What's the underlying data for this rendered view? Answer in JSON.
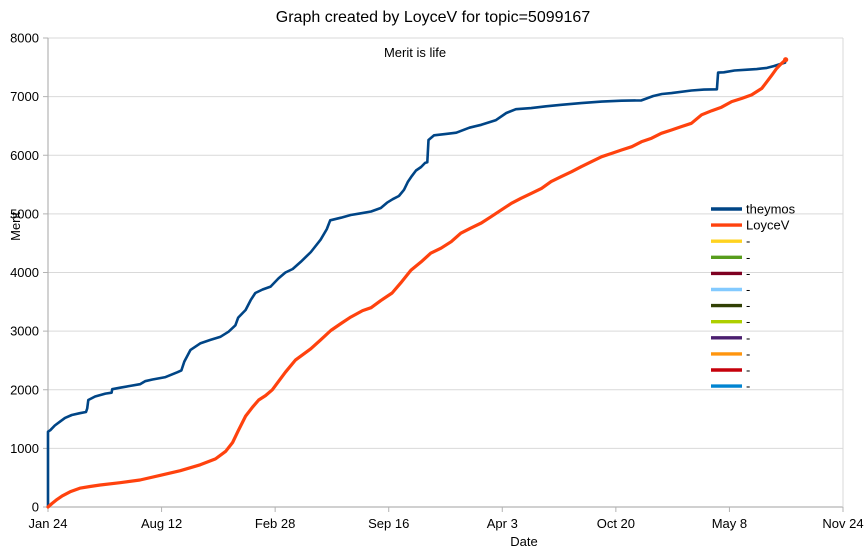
{
  "chart_data": {
    "type": "line",
    "title": "Graph created by LoyceV for topic=5099167",
    "subtitle": "Merit is life",
    "xlabel": "Date",
    "ylabel": "Merit",
    "xlim": [
      0,
      1400
    ],
    "ylim": [
      0,
      8000
    ],
    "y_tick_step": 1000,
    "y_tick_labels": [
      "0",
      "1000",
      "2000",
      "3000",
      "4000",
      "5000",
      "6000",
      "7000",
      "8000"
    ],
    "x_ticks": [
      {
        "pos": 0,
        "label": "Jan 24"
      },
      {
        "pos": 200,
        "label": "Aug 12"
      },
      {
        "pos": 400,
        "label": "Feb 28"
      },
      {
        "pos": 600,
        "label": "Sep 16"
      },
      {
        "pos": 800,
        "label": "Apr 3"
      },
      {
        "pos": 1000,
        "label": "Oct 20"
      },
      {
        "pos": 1200,
        "label": "May 8"
      },
      {
        "pos": 1400,
        "label": "Nov 24"
      }
    ],
    "grid": "horizontal",
    "legend_position": "right-inside",
    "series": [
      {
        "name": "theymos",
        "color": "#004586",
        "width": 2.6,
        "points": [
          [
            0,
            0
          ],
          [
            0,
            1285
          ],
          [
            4,
            1310
          ],
          [
            12,
            1390
          ],
          [
            21,
            1455
          ],
          [
            30,
            1520
          ],
          [
            42,
            1570
          ],
          [
            56,
            1600
          ],
          [
            67,
            1620
          ],
          [
            69,
            1680
          ],
          [
            71,
            1825
          ],
          [
            83,
            1885
          ],
          [
            101,
            1935
          ],
          [
            112,
            1950
          ],
          [
            113,
            2010
          ],
          [
            127,
            2035
          ],
          [
            145,
            2065
          ],
          [
            162,
            2095
          ],
          [
            171,
            2145
          ],
          [
            184,
            2175
          ],
          [
            207,
            2215
          ],
          [
            228,
            2300
          ],
          [
            235,
            2330
          ],
          [
            240,
            2480
          ],
          [
            251,
            2680
          ],
          [
            268,
            2790
          ],
          [
            286,
            2850
          ],
          [
            304,
            2905
          ],
          [
            318,
            2990
          ],
          [
            330,
            3100
          ],
          [
            335,
            3230
          ],
          [
            348,
            3360
          ],
          [
            357,
            3530
          ],
          [
            365,
            3650
          ],
          [
            378,
            3710
          ],
          [
            392,
            3760
          ],
          [
            406,
            3900
          ],
          [
            418,
            4000
          ],
          [
            431,
            4060
          ],
          [
            445,
            4180
          ],
          [
            463,
            4350
          ],
          [
            480,
            4560
          ],
          [
            491,
            4740
          ],
          [
            497,
            4890
          ],
          [
            516,
            4935
          ],
          [
            533,
            4980
          ],
          [
            551,
            5010
          ],
          [
            569,
            5040
          ],
          [
            586,
            5100
          ],
          [
            597,
            5190
          ],
          [
            607,
            5250
          ],
          [
            618,
            5305
          ],
          [
            627,
            5410
          ],
          [
            634,
            5550
          ],
          [
            641,
            5650
          ],
          [
            648,
            5740
          ],
          [
            657,
            5800
          ],
          [
            664,
            5870
          ],
          [
            668,
            5880
          ],
          [
            670,
            6260
          ],
          [
            680,
            6340
          ],
          [
            701,
            6365
          ],
          [
            719,
            6385
          ],
          [
            742,
            6470
          ],
          [
            763,
            6520
          ],
          [
            789,
            6600
          ],
          [
            807,
            6720
          ],
          [
            824,
            6785
          ],
          [
            851,
            6805
          ],
          [
            877,
            6835
          ],
          [
            904,
            6860
          ],
          [
            939,
            6890
          ],
          [
            975,
            6915
          ],
          [
            1010,
            6930
          ],
          [
            1045,
            6935
          ],
          [
            1066,
            7010
          ],
          [
            1081,
            7045
          ],
          [
            1098,
            7060
          ],
          [
            1133,
            7105
          ],
          [
            1155,
            7120
          ],
          [
            1178,
            7125
          ],
          [
            1180,
            7410
          ],
          [
            1190,
            7415
          ],
          [
            1209,
            7445
          ],
          [
            1231,
            7460
          ],
          [
            1248,
            7470
          ],
          [
            1266,
            7490
          ],
          [
            1278,
            7520
          ],
          [
            1289,
            7555
          ],
          [
            1298,
            7580
          ]
        ]
      },
      {
        "name": "LoyceV",
        "color": "#ff420e",
        "width": 3.2,
        "end_dot": true,
        "points": [
          [
            0,
            0
          ],
          [
            7,
            60
          ],
          [
            16,
            130
          ],
          [
            25,
            190
          ],
          [
            39,
            260
          ],
          [
            56,
            320
          ],
          [
            74,
            350
          ],
          [
            92,
            375
          ],
          [
            127,
            415
          ],
          [
            162,
            460
          ],
          [
            198,
            540
          ],
          [
            233,
            620
          ],
          [
            268,
            720
          ],
          [
            295,
            820
          ],
          [
            313,
            950
          ],
          [
            325,
            1100
          ],
          [
            335,
            1300
          ],
          [
            348,
            1550
          ],
          [
            360,
            1700
          ],
          [
            371,
            1825
          ],
          [
            383,
            1900
          ],
          [
            395,
            2000
          ],
          [
            418,
            2300
          ],
          [
            436,
            2510
          ],
          [
            463,
            2700
          ],
          [
            480,
            2850
          ],
          [
            498,
            3010
          ],
          [
            516,
            3130
          ],
          [
            533,
            3240
          ],
          [
            554,
            3350
          ],
          [
            569,
            3400
          ],
          [
            586,
            3520
          ],
          [
            606,
            3650
          ],
          [
            621,
            3820
          ],
          [
            639,
            4040
          ],
          [
            657,
            4180
          ],
          [
            674,
            4330
          ],
          [
            692,
            4415
          ],
          [
            710,
            4525
          ],
          [
            727,
            4670
          ],
          [
            745,
            4760
          ],
          [
            763,
            4845
          ],
          [
            780,
            4950
          ],
          [
            798,
            5065
          ],
          [
            816,
            5180
          ],
          [
            833,
            5265
          ],
          [
            851,
            5350
          ],
          [
            869,
            5435
          ],
          [
            886,
            5550
          ],
          [
            904,
            5635
          ],
          [
            922,
            5720
          ],
          [
            939,
            5805
          ],
          [
            957,
            5890
          ],
          [
            975,
            5975
          ],
          [
            992,
            6030
          ],
          [
            1010,
            6090
          ],
          [
            1028,
            6145
          ],
          [
            1045,
            6230
          ],
          [
            1063,
            6290
          ],
          [
            1080,
            6375
          ],
          [
            1098,
            6430
          ],
          [
            1116,
            6490
          ],
          [
            1133,
            6545
          ],
          [
            1151,
            6690
          ],
          [
            1169,
            6760
          ],
          [
            1186,
            6820
          ],
          [
            1204,
            6915
          ],
          [
            1222,
            6970
          ],
          [
            1239,
            7030
          ],
          [
            1248,
            7085
          ],
          [
            1257,
            7140
          ],
          [
            1266,
            7255
          ],
          [
            1275,
            7370
          ],
          [
            1283,
            7480
          ],
          [
            1290,
            7550
          ],
          [
            1299,
            7630
          ]
        ]
      },
      {
        "name": "-",
        "color": "#ffd320",
        "points": []
      },
      {
        "name": "-",
        "color": "#579d1c",
        "points": []
      },
      {
        "name": "-",
        "color": "#7e0021",
        "points": []
      },
      {
        "name": "-",
        "color": "#83caff",
        "points": []
      },
      {
        "name": "-",
        "color": "#314004",
        "points": []
      },
      {
        "name": "-",
        "color": "#aecf00",
        "points": []
      },
      {
        "name": "-",
        "color": "#4b1f6f",
        "points": []
      },
      {
        "name": "-",
        "color": "#ff950e",
        "points": []
      },
      {
        "name": "-",
        "color": "#c5000b",
        "points": []
      },
      {
        "name": "-",
        "color": "#0084d1",
        "points": []
      }
    ],
    "axis_color": "#b3b3b3",
    "grid_color": "#d9d9d9"
  }
}
